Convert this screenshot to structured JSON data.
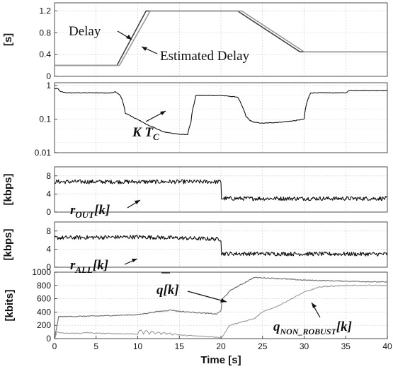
{
  "figure": {
    "x_axis": {
      "label": "Time [s]",
      "range": [
        0,
        40
      ],
      "tick_values": [
        0,
        5,
        10,
        15,
        20,
        25,
        30,
        35,
        40
      ],
      "tick_labels": [
        "0",
        "5",
        "10",
        "15",
        "20",
        "25",
        "30",
        "35",
        "40"
      ]
    },
    "panels": [
      {
        "id": "delay",
        "ylabel": "[s]",
        "ylim": [
          0,
          1.35
        ],
        "scale": "linear",
        "yticks": [
          "0",
          "0.4",
          "0.8",
          "1.2"
        ],
        "ytick_values": [
          0,
          0.4,
          0.8,
          1.2
        ],
        "annotations": [
          {
            "id": "delay",
            "text": "Delay"
          },
          {
            "id": "estimated-delay",
            "text": "Estimated Delay"
          }
        ]
      },
      {
        "id": "ktc",
        "ylabel": "",
        "ylim": [
          0.01,
          1.2
        ],
        "scale": "log",
        "yticks": [
          "0.01",
          "0.1",
          "1"
        ],
        "ytick_values": [
          0.01,
          0.1,
          1
        ],
        "annotations": [
          {
            "id": "ktc",
            "main": "K T",
            "sub": "C"
          }
        ]
      },
      {
        "id": "r-out",
        "ylabel": "[kbps]",
        "ylim": [
          0,
          10
        ],
        "scale": "linear",
        "yticks": [
          "0",
          "4",
          "8"
        ],
        "ytick_values": [
          0,
          4,
          8
        ],
        "annotations": [
          {
            "id": "r-out",
            "main": "r",
            "sub": "OUT",
            "suffix": "[k]"
          }
        ]
      },
      {
        "id": "r-all",
        "ylabel": "[kbps]",
        "ylim": [
          0,
          10
        ],
        "scale": "linear",
        "yticks": [
          "0",
          "4",
          "8"
        ],
        "ytick_values": [
          0,
          4,
          8
        ],
        "annotations": [
          {
            "id": "r-all",
            "main": "r",
            "sub": "ALL",
            "suffix": "[k]"
          }
        ]
      },
      {
        "id": "queue",
        "ylabel": "[kbits]",
        "ylim": [
          0,
          1000
        ],
        "scale": "linear",
        "yticks": [
          "0",
          "200",
          "400",
          "600",
          "800",
          "1000"
        ],
        "ytick_values": [
          0,
          200,
          400,
          600,
          800,
          1000
        ],
        "annotations": [
          {
            "id": "q",
            "main": "q[k]"
          },
          {
            "id": "q-non-robust",
            "main": "q",
            "sub": "NON_ROBUST",
            "suffix": "[k]"
          }
        ]
      }
    ]
  },
  "chart_data": [
    {
      "type": "line",
      "panel": "delay",
      "ylabel": "[s]",
      "ylim": [
        0,
        1.35
      ],
      "series": [
        {
          "name": "Delay",
          "color": "#444444",
          "x": [
            0,
            7.5,
            11,
            19,
            22,
            29.5,
            40
          ],
          "y": [
            0.2,
            0.2,
            1.2,
            1.2,
            1.2,
            0.45,
            0.45
          ]
        },
        {
          "name": "Estimated Delay",
          "color": "#9a9a9a",
          "x": [
            0,
            7.8,
            11.5,
            19.5,
            22.5,
            30,
            40
          ],
          "y": [
            0.2,
            0.2,
            1.2,
            1.2,
            1.2,
            0.45,
            0.45
          ]
        }
      ]
    },
    {
      "type": "line",
      "panel": "ktc",
      "yscale": "log",
      "ylim": [
        0.01,
        1.2
      ],
      "series": [
        {
          "name": "K T_C",
          "color": "#111111",
          "x": [
            0,
            0.4,
            0.7,
            1.5,
            1.8,
            7,
            7.3,
            7.9,
            8.5,
            9.5,
            11,
            12,
            13,
            15,
            16,
            16.4,
            16.8,
            17,
            19.5,
            20,
            22,
            22.5,
            23,
            23.5,
            24,
            25,
            27,
            29,
            30,
            30.4,
            30.8,
            35,
            35.4,
            40
          ],
          "y": [
            0.8,
            0.8,
            0.65,
            0.6,
            0.6,
            0.6,
            0.65,
            0.5,
            0.15,
            0.11,
            0.07,
            0.055,
            0.042,
            0.035,
            0.035,
            0.08,
            0.3,
            0.5,
            0.5,
            0.5,
            0.45,
            0.25,
            0.12,
            0.09,
            0.08,
            0.075,
            0.08,
            0.09,
            0.1,
            0.35,
            0.6,
            0.6,
            0.7,
            0.7
          ]
        }
      ]
    },
    {
      "type": "line",
      "panel": "r-out",
      "ylabel": "[kbps]",
      "ylim": [
        0,
        10
      ],
      "series": [
        {
          "name": "r_OUT[k]",
          "color": "#111111",
          "x": [
            0,
            20,
            20.05,
            40
          ],
          "y": [
            6.7,
            6.7,
            3.0,
            3.0
          ]
        }
      ]
    },
    {
      "type": "line",
      "panel": "r-all",
      "ylabel": "[kbps]",
      "ylim": [
        0,
        10
      ],
      "series": [
        {
          "name": "r_ALL[k]",
          "color": "#111111",
          "x": [
            0,
            10,
            20,
            20.05,
            40
          ],
          "y": [
            6.5,
            6.7,
            6.2,
            3.0,
            2.9
          ]
        }
      ]
    },
    {
      "type": "line",
      "panel": "queue",
      "ylabel": "[kbits]",
      "ylim": [
        0,
        1000
      ],
      "xlabel": "Time [s]",
      "xlim": [
        0,
        40
      ],
      "series": [
        {
          "name": "q[k]",
          "color": "#6a6a6a",
          "x": [
            0,
            0.5,
            5,
            10,
            12,
            14,
            15,
            19.5,
            20,
            20.2,
            21.2,
            24,
            26,
            30,
            40
          ],
          "y": [
            0,
            330,
            340,
            360,
            400,
            430,
            410,
            370,
            420,
            600,
            730,
            920,
            910,
            880,
            850
          ]
        },
        {
          "name": "q_NON_ROBUST[k]",
          "color": "#9a9a9a",
          "x": [
            0,
            0.3,
            1,
            3,
            4,
            5,
            10,
            14,
            19.8,
            20,
            20.8,
            21,
            24,
            25,
            27,
            30,
            32,
            35,
            40
          ],
          "y": [
            0,
            100,
            80,
            80,
            90,
            80,
            70,
            60,
            20,
            0,
            150,
            200,
            300,
            400,
            500,
            700,
            780,
            800,
            800
          ]
        }
      ]
    }
  ]
}
